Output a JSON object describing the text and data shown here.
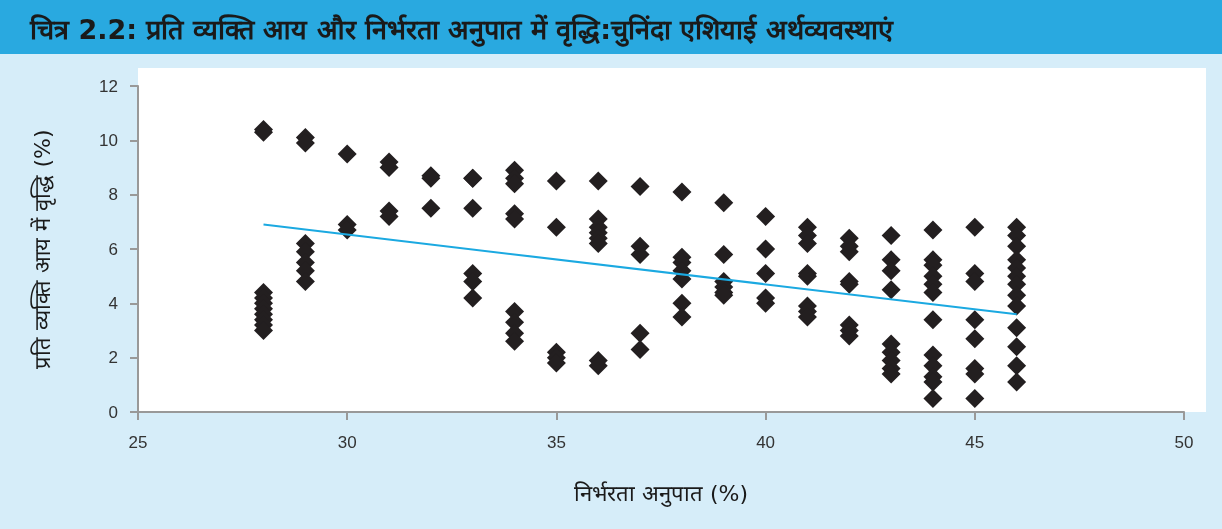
{
  "chart_data": {
    "type": "scatter",
    "title": "चित्र 2.2:  प्रति व्यक्ति आय और निर्भरता अनुपात में वृद्धि:चुनिंदा एशियाई अर्थव्यवस्थाएं",
    "xlabel": "निर्भरता अनुपात (%)",
    "ylabel": "प्रति व्यक्ति आय में वृद्धि (%)",
    "xlim": [
      25,
      50
    ],
    "xticks": [
      25,
      30,
      35,
      40,
      45,
      50
    ],
    "ylim": [
      0,
      12
    ],
    "yticks": [
      0,
      2,
      4,
      6,
      8,
      10,
      12
    ],
    "grid": false,
    "marker": "diamond",
    "series": [
      {
        "color": "#231f20",
        "x": [
          28,
          28,
          28,
          28,
          28,
          28,
          28,
          28,
          28,
          28,
          29,
          29,
          29,
          29,
          29,
          29,
          29,
          30,
          30,
          30,
          31,
          31,
          31,
          31,
          32,
          32,
          32,
          33,
          33,
          33,
          33,
          33,
          33,
          34,
          34,
          34,
          34,
          34,
          34,
          34,
          34,
          34,
          35,
          35,
          35,
          35,
          35,
          36,
          36,
          36,
          36,
          36,
          36,
          36,
          36,
          37,
          37,
          37,
          37,
          37,
          38,
          38,
          38,
          38,
          38,
          38,
          38,
          39,
          39,
          39,
          39,
          39,
          39,
          40,
          40,
          40,
          40,
          40,
          41,
          41,
          41,
          41,
          41,
          41,
          41,
          41,
          42,
          42,
          42,
          42,
          42,
          42,
          42,
          42,
          43,
          43,
          43,
          43,
          43,
          43,
          43,
          43,
          43,
          44,
          44,
          44,
          44,
          44,
          44,
          44,
          44,
          44,
          44,
          44,
          44,
          45,
          45,
          45,
          45,
          45,
          45,
          45,
          45,
          46,
          46,
          46,
          46,
          46,
          46,
          46,
          46,
          46,
          46,
          46,
          46,
          46
        ],
        "values": [
          10.4,
          10.3,
          4.4,
          4.2,
          4.0,
          3.8,
          3.6,
          3.4,
          3.2,
          3.0,
          10.1,
          9.9,
          6.2,
          5.9,
          5.5,
          5.2,
          4.8,
          9.5,
          6.9,
          6.7,
          9.2,
          9.0,
          7.4,
          7.2,
          8.7,
          8.6,
          7.5,
          8.6,
          8.6,
          7.5,
          5.1,
          4.8,
          4.2,
          8.9,
          8.6,
          8.4,
          7.3,
          7.1,
          3.7,
          3.3,
          2.9,
          2.6,
          8.5,
          6.8,
          2.2,
          2.0,
          1.8,
          8.5,
          7.1,
          6.8,
          6.6,
          6.4,
          6.2,
          1.9,
          1.7,
          8.3,
          6.1,
          5.8,
          2.9,
          2.3,
          8.1,
          5.7,
          5.5,
          5.2,
          4.9,
          4.0,
          3.5,
          7.7,
          5.8,
          4.8,
          4.6,
          4.4,
          4.3,
          7.2,
          6.0,
          5.1,
          4.2,
          4.0,
          6.8,
          6.5,
          6.2,
          5.1,
          5.0,
          3.9,
          3.7,
          3.5,
          6.4,
          6.1,
          5.9,
          4.8,
          4.7,
          3.2,
          3.0,
          2.8,
          6.5,
          5.6,
          5.2,
          4.5,
          2.5,
          2.2,
          1.9,
          1.6,
          1.4,
          6.7,
          5.6,
          5.4,
          5.0,
          4.7,
          4.4,
          3.4,
          2.1,
          1.7,
          1.3,
          1.1,
          0.5,
          6.8,
          5.1,
          4.8,
          3.4,
          2.7,
          1.6,
          1.4,
          0.5,
          6.8,
          6.5,
          6.1,
          5.6,
          5.3,
          5.0,
          4.7,
          4.3,
          3.9,
          3.1,
          2.4,
          1.7,
          1.1
        ]
      },
      {
        "type": "line",
        "color": "#1ba9e1",
        "marker": "none",
        "x": [
          28,
          46
        ],
        "values": [
          6.9,
          3.6
        ]
      }
    ]
  }
}
